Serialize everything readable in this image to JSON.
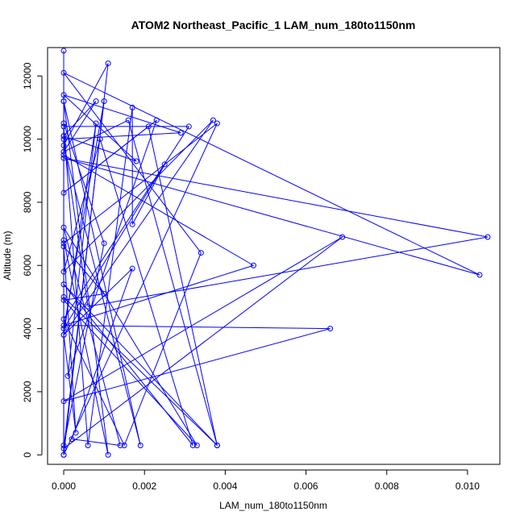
{
  "chart_data": {
    "type": "line",
    "title": "ATOM2 Northeast_Pacific_1 LAM_num_180to1150nm",
    "xlabel": "LAM_num_180to1150nm",
    "ylabel": "Altitude (m)",
    "xlim": [
      -0.0004,
      0.0108
    ],
    "ylim": [
      -300,
      12900
    ],
    "xticks": [
      0,
      0.002,
      0.004,
      0.006,
      0.008,
      0.01
    ],
    "xtick_labels": [
      "0.000",
      "0.002",
      "0.004",
      "0.006",
      "0.008",
      "0.010"
    ],
    "yticks": [
      0,
      2000,
      4000,
      6000,
      8000,
      10000,
      12000
    ],
    "ytick_labels": [
      "0",
      "2000",
      "4000",
      "6000",
      "8000",
      "10000",
      "12000"
    ],
    "grid": false,
    "legend": "none",
    "color": "#0000ff",
    "x": [
      0,
      0,
      0.0011,
      0,
      0.0019,
      0,
      0.0011,
      0,
      0,
      0,
      0,
      0.0047,
      0,
      0.0066,
      0,
      0.0069,
      0,
      0.001,
      0,
      0.0025,
      0.0017,
      0.0017,
      0.0006,
      0,
      0.0031,
      0,
      0.0015,
      0.0034,
      0,
      0.0103,
      0,
      0.0105,
      0.0006,
      0,
      0.0029,
      0,
      0.0018,
      0,
      0.0008,
      0,
      0.0016,
      0.0038,
      0,
      0.0032,
      0.0009,
      0,
      0.0037,
      0,
      0.0003,
      0,
      0.001,
      0,
      0.0033,
      0,
      0.0014,
      0.0002,
      0.0017,
      0,
      0.0008,
      0.0001,
      0.0023,
      0,
      0.0021,
      0.0038,
      0,
      0,
      0.0038,
      0,
      0,
      0.001,
      0
    ],
    "y": [
      12800,
      0,
      12400,
      9800,
      300,
      11200,
      0,
      6800,
      11200,
      10100,
      9500,
      6000,
      4100,
      4000,
      1700,
      6900,
      200,
      11200,
      4000,
      9200,
      7300,
      11000,
      300,
      10400,
      10400,
      4300,
      300,
      6400,
      12100,
      5700,
      9400,
      6900,
      4700,
      10000,
      10200,
      11400,
      9300,
      10100,
      11200,
      9600,
      10600,
      300,
      5400,
      300,
      10000,
      5800,
      10600,
      3800,
      700,
      6600,
      5100,
      4900,
      300,
      7200,
      300,
      500,
      5900,
      3800,
      10500,
      2500,
      10600,
      8300,
      10400,
      300,
      5000,
      0,
      10500,
      6700,
      300,
      6700,
      10500
    ]
  }
}
